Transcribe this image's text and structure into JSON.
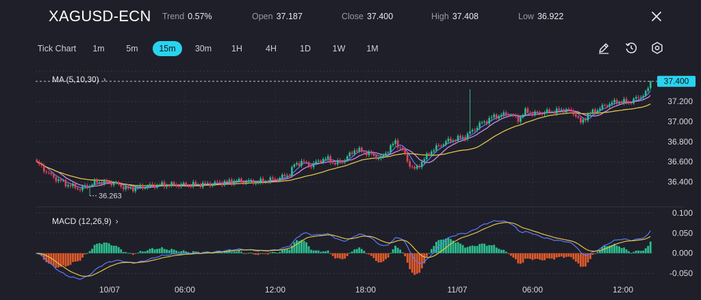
{
  "header": {
    "symbol": "XAGUSD-ECN",
    "trend_label": "Trend",
    "trend_value": "0.57%",
    "open_label": "Open",
    "open_value": "37.187",
    "close_label": "Close",
    "close_value": "37.400",
    "high_label": "High",
    "high_value": "37.408",
    "low_label": "Low",
    "low_value": "36.922"
  },
  "timeframes": [
    "Tick Chart",
    "1m",
    "5m",
    "15m",
    "30m",
    "1H",
    "4H",
    "1D",
    "1W",
    "1M"
  ],
  "active_timeframe": "15m",
  "tools": [
    "pencil-icon",
    "history-icon",
    "settings-icon",
    "close-icon"
  ],
  "indicators": {
    "ma_label": "MA (5,10,30)",
    "macd_label": "MACD (12,26,9)"
  },
  "chart_data": {
    "type": "candlestick",
    "price_axis": {
      "ticks": [
        "37.200",
        "37.000",
        "36.800",
        "36.600",
        "36.400"
      ],
      "tick_values": [
        37.2,
        37.0,
        36.8,
        36.6,
        36.4
      ],
      "range": [
        36.2,
        37.5
      ]
    },
    "macd_axis": {
      "ticks": [
        "0.100",
        "0.050",
        "0.000",
        "-0.050"
      ],
      "tick_values": [
        0.1,
        0.05,
        0.0,
        -0.05
      ],
      "range": [
        -0.06,
        0.11
      ]
    },
    "time_labels": [
      "10/07",
      "06:00",
      "12:00",
      "18:00",
      "11/07",
      "06:00",
      "12:00"
    ],
    "current_price": "37.400",
    "current_price_value": 37.4,
    "low_marker": "36.263",
    "low_marker_value": 36.263,
    "colors": {
      "up": "#2bbd8e",
      "down": "#e0445a",
      "ma5": "#5b7bff",
      "ma10": "#d98ae6",
      "ma30": "#e5c54a",
      "dif": "#5b7bff",
      "dea": "#e5c54a",
      "price_tag": "#29d3ee"
    }
  }
}
